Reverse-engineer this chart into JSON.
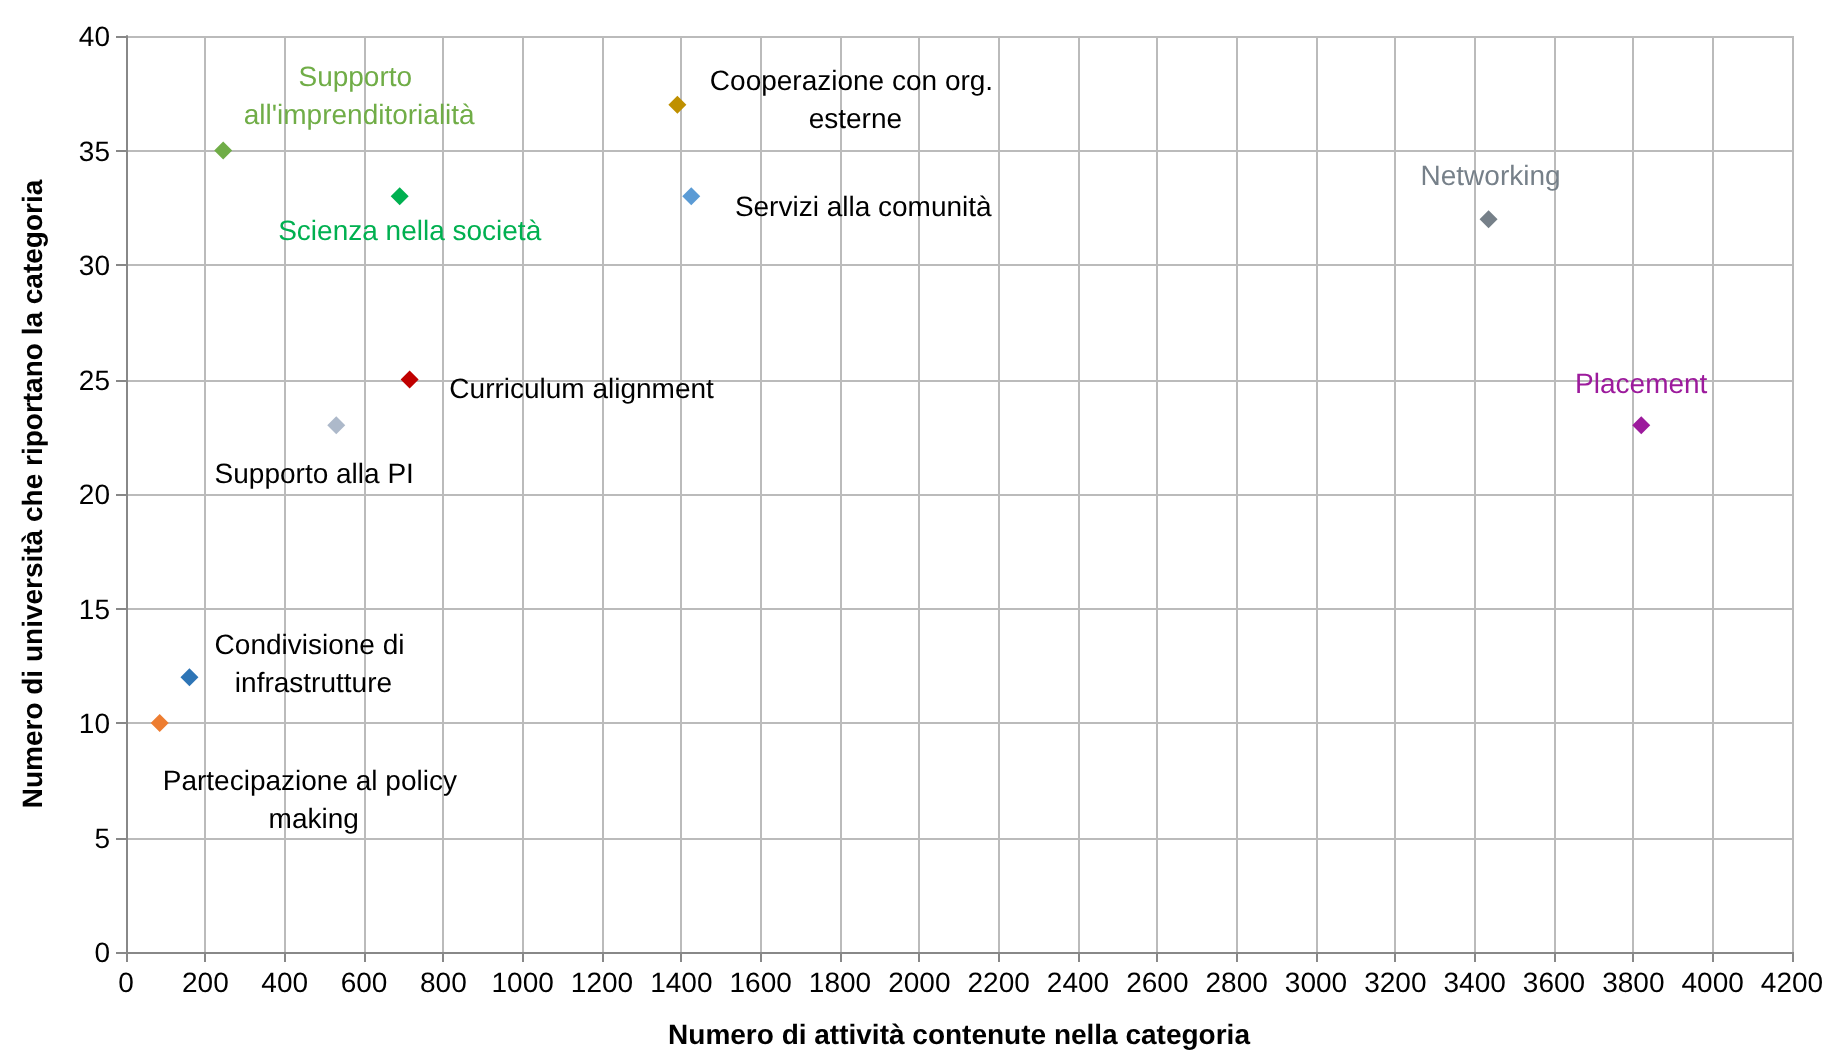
{
  "chart_data": {
    "type": "scatter",
    "xlabel": "Numero di attività contenute nella categoria",
    "ylabel": "Numero di università che riportano la categoria",
    "xlim": [
      0,
      4200
    ],
    "xticks": [
      0,
      200,
      400,
      600,
      800,
      1000,
      1200,
      1400,
      1600,
      1800,
      2000,
      2200,
      2400,
      2600,
      2800,
      3000,
      3200,
      3400,
      3600,
      3800,
      4000,
      4200
    ],
    "ylim": [
      0,
      40
    ],
    "yticks": [
      0,
      5,
      10,
      15,
      20,
      25,
      30,
      35,
      40
    ],
    "grid": true,
    "legend": false,
    "marker": "diamond",
    "series": [
      {
        "name": "Partecipazione al policy making",
        "color": "#ed7d31",
        "x": [
          85
        ],
        "values": [
          10
        ]
      },
      {
        "name": "Condivisione di infrastrutture",
        "color": "#2e75b6",
        "x": [
          160
        ],
        "values": [
          12
        ]
      },
      {
        "name": "Supporto all'imprenditorialità",
        "color": "#70ad47",
        "x": [
          245
        ],
        "values": [
          35
        ]
      },
      {
        "name": "Supporto alla PI",
        "color": "#adb9ca",
        "x": [
          530
        ],
        "values": [
          23
        ]
      },
      {
        "name": "Scienza nella società",
        "color": "#00b050",
        "x": [
          690
        ],
        "values": [
          33
        ]
      },
      {
        "name": "Curriculum alignment",
        "color": "#c00000",
        "x": [
          715
        ],
        "values": [
          25
        ]
      },
      {
        "name": "Cooperazione con org. esterne",
        "color": "#bf9000",
        "x": [
          1390
        ],
        "values": [
          37
        ]
      },
      {
        "name": "Servizi alla comunità",
        "color": "#5b9bd5",
        "x": [
          1425
        ],
        "values": [
          33
        ]
      },
      {
        "name": "Networking",
        "color": "#768089",
        "x": [
          3435
        ],
        "values": [
          32
        ]
      },
      {
        "name": "Placement",
        "color": "#9c1a9c",
        "x": [
          3820
        ],
        "values": [
          23
        ]
      }
    ]
  }
}
